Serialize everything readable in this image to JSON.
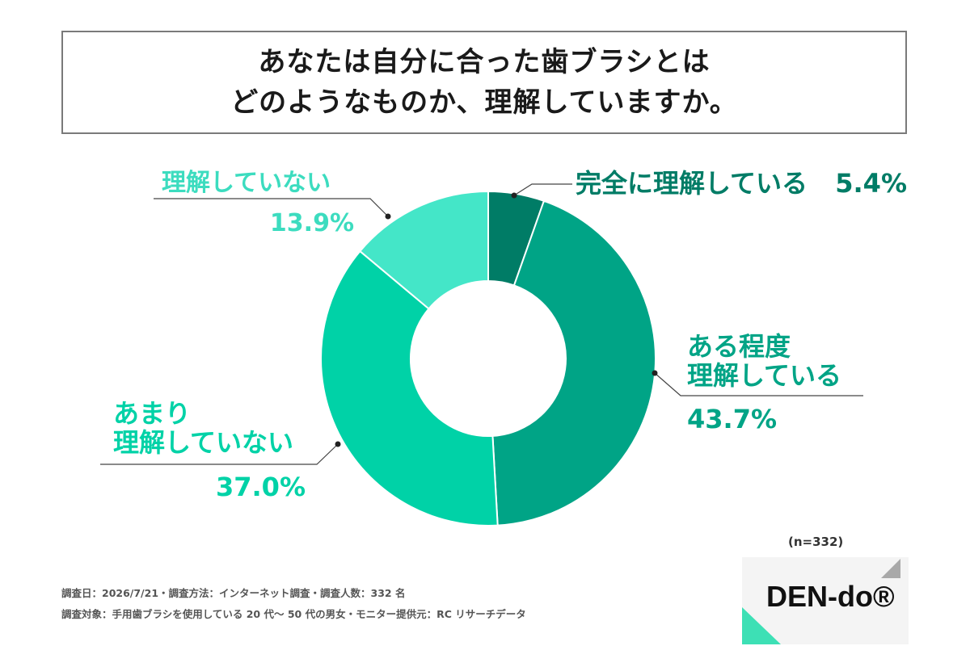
{
  "title": {
    "line1": "あなたは自分に合った歯ブラシとは",
    "line2": "どのようなものか、理解していますか。"
  },
  "chart_data": {
    "type": "pie",
    "donut": true,
    "title": "あなたは自分に合った歯ブラシとはどのようなものか、理解していますか。",
    "slices": [
      {
        "label": "完全に理解している",
        "value": 5.4,
        "value_label": "5.4%",
        "color": "#007c66"
      },
      {
        "label": "ある程度理解している",
        "value": 43.7,
        "value_label": "43.7%",
        "color": "#00a486"
      },
      {
        "label": "あまり理解していない",
        "value": 37.0,
        "value_label": "37.0%",
        "color": "#00d2a7"
      },
      {
        "label": "理解していない",
        "value": 13.9,
        "value_label": "13.9%",
        "color": "#44e6c8"
      }
    ],
    "label_lines": {
      "s0": [
        "完全に理解している"
      ],
      "s1": [
        "ある程度",
        "理解している"
      ],
      "s2": [
        "あまり",
        "理解していない"
      ],
      "s3": [
        "理解していない"
      ]
    },
    "n": "(n=332)"
  },
  "footer": {
    "line1": "調査日：2026/7/21・調査方法：インターネット調査・調査人数：332 名",
    "line2": "調査対象：手用歯ブラシを使用している 20 代〜 50 代の男女・モニター提供元：RC リサーチデータ"
  },
  "logo": {
    "text": "DEN-do®"
  }
}
